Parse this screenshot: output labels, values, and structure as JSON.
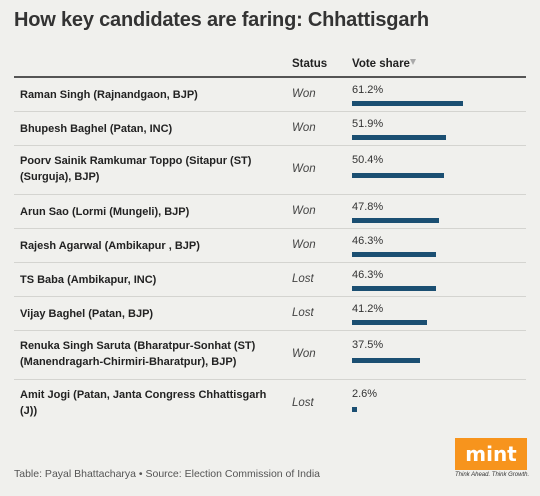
{
  "title": "How key candidates are faring: Chhattisgarh",
  "columns": {
    "status": "Status",
    "vote_share": "Vote share"
  },
  "rows": [
    {
      "name": "Raman Singh (Rajnandgaon, BJP)",
      "status": "Won",
      "share_label": "61.2%",
      "share": 61.2
    },
    {
      "name": "Bhupesh Baghel (Patan, INC)",
      "status": "Won",
      "share_label": "51.9%",
      "share": 51.9
    },
    {
      "name": "Poorv Sainik Ramkumar Toppo (Sitapur (ST) (Surguja), BJP)",
      "status": "Won",
      "share_label": "50.4%",
      "share": 50.4
    },
    {
      "name": "Arun Sao (Lormi (Mungeli), BJP)",
      "status": "Won",
      "share_label": "47.8%",
      "share": 47.8
    },
    {
      "name": "Rajesh Agarwal (Ambikapur , BJP)",
      "status": "Won",
      "share_label": "46.3%",
      "share": 46.3
    },
    {
      "name": "TS Baba (Ambikapur, INC)",
      "status": "Lost",
      "share_label": "46.3%",
      "share": 46.3
    },
    {
      "name": "Vijay Baghel (Patan, BJP)",
      "status": "Lost",
      "share_label": "41.2%",
      "share": 41.2
    },
    {
      "name": "Renuka Singh Saruta (Bharatpur-Sonhat (ST) (Manendragarh-Chirmiri-Bharatpur), BJP)",
      "status": "Won",
      "share_label": "37.5%",
      "share": 37.5
    },
    {
      "name": "Amit Jogi (Patan, Janta Congress Chhattisgarh (J))",
      "status": "Lost",
      "share_label": "2.6%",
      "share": 2.6
    }
  ],
  "footer": "Table: Payal Bhattacharya • Source: Election Commission of India",
  "logo": {
    "text": "mint",
    "tagline": "Think Ahead. Think Growth."
  },
  "colors": {
    "bar": "#1b4f72",
    "logo": "#f7941d",
    "background": "#f0f0ed"
  }
}
